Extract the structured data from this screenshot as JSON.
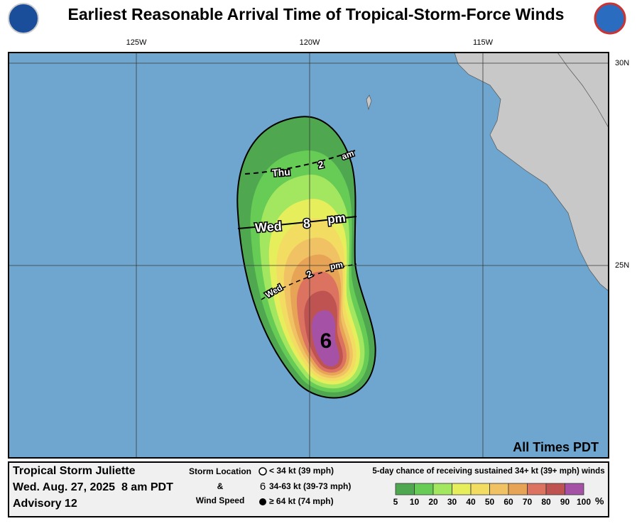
{
  "header": {
    "title": "Earliest Reasonable Arrival Time of Tropical-Storm-Force Winds"
  },
  "map": {
    "lon_labels": [
      "125W",
      "120W",
      "115W"
    ],
    "lat_labels": [
      "30N",
      "25N"
    ],
    "time_labels": [
      [
        "Thu",
        "2",
        "am"
      ],
      [
        "Wed",
        "8",
        "pm"
      ],
      [
        "Wed",
        "2",
        "pm"
      ]
    ],
    "note": "All Times PDT"
  },
  "footer": {
    "storm": "Tropical Storm Juliette",
    "date": "Wed. Aug. 27, 2025  8 am PDT",
    "advisory": "Advisory 12",
    "legend": {
      "title_lines": [
        "Storm Location",
        "&",
        "Wind Speed"
      ],
      "items": [
        "< 34 kt (39 mph)",
        "34-63 kt (39-73 mph)",
        "≥ 64 kt (74 mph)"
      ]
    },
    "scale": {
      "title": "5-day chance of receiving sustained 34+ kt (39+ mph) winds",
      "labels": [
        5,
        10,
        20,
        30,
        40,
        50,
        60,
        70,
        80,
        90,
        100
      ],
      "unit": "%",
      "colors": [
        "#4fa84f",
        "#66cc55",
        "#a3e65f",
        "#e6ee5c",
        "#f2dd62",
        "#f0c263",
        "#e8a456",
        "#dc7260",
        "#bf5352",
        "#a552a6"
      ]
    }
  }
}
